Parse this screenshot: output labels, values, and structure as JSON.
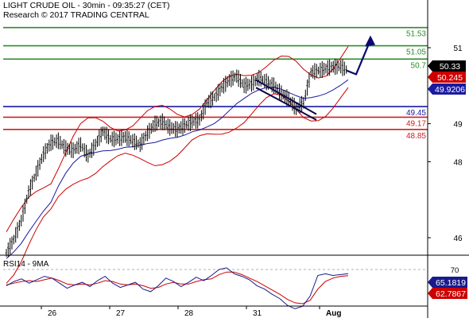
{
  "header": {
    "title": "LIGHT CRUDE OIL - 30min - 09:35:27 (CET)",
    "subtitle": "Research © 2017 TRADING CENTRAL"
  },
  "colors": {
    "background": "#ffffff",
    "resistance": "#2e8b2e",
    "pivot": "#1a1aa0",
    "support": "#cc2020",
    "price_bars": "#000000",
    "bollinger": "#cc0000",
    "moving_average": "#1a1aa0",
    "forecast_arrow": "#0a0a6e",
    "rsi_line": "#1a1a8c",
    "rsi_signal": "#cc0000"
  },
  "chart_data": [
    {
      "type": "candlestick",
      "title": "LIGHT CRUDE OIL - 30min - 09:35:27 (CET)",
      "y_axis": {
        "range": [
          45.45,
          52.3
        ],
        "ticks": [
          "51",
          "49",
          "48",
          "46"
        ],
        "tick_values": [
          51.0,
          49.0,
          48.0,
          46.0
        ]
      },
      "x_axis": {
        "ticks": [
          "26",
          "27",
          "28",
          "31",
          "Aug"
        ]
      },
      "horizontal_levels": [
        {
          "value": 51.53,
          "label": "51.53",
          "role": "resistance"
        },
        {
          "value": 51.05,
          "label": "51.05",
          "role": "resistance"
        },
        {
          "value": 50.7,
          "label": "50.7",
          "role": "resistance"
        },
        {
          "value": 49.45,
          "label": "49.45",
          "role": "pivot"
        },
        {
          "value": 49.17,
          "label": "49.17",
          "role": "support"
        },
        {
          "value": 48.85,
          "label": "48.85",
          "role": "support"
        }
      ],
      "price_tags": [
        {
          "value": 50.33,
          "label": "50.33",
          "style": "last"
        },
        {
          "value": 50.245,
          "label": "50.245",
          "style": "bollinger"
        },
        {
          "value": 49.9206,
          "label": "49.9206",
          "style": "ma"
        }
      ],
      "close_path": [
        45.6,
        45.95,
        46.45,
        47.2,
        47.7,
        48.2,
        48.5,
        48.55,
        48.35,
        48.3,
        48.45,
        48.15,
        48.45,
        48.8,
        48.6,
        48.6,
        48.65,
        48.55,
        48.45,
        48.75,
        49.0,
        49.05,
        48.9,
        48.85,
        48.95,
        49.05,
        49.1,
        49.55,
        49.7,
        49.95,
        50.15,
        50.25,
        50.0,
        50.05,
        50.2,
        50.1,
        50.0,
        49.8,
        49.65,
        49.4,
        49.55,
        50.35,
        50.4,
        50.45,
        50.5,
        50.5,
        50.4
      ],
      "trend_channel": {
        "from": [
          50.15,
          49.95
        ],
        "to": [
          49.25,
          49.1
        ]
      },
      "forecast_arrow": [
        50.4,
        50.3,
        51.2
      ]
    },
    {
      "type": "line",
      "title": "RSI14 - 9MA",
      "y_axis": {
        "ticks": [
          "70"
        ],
        "tick_values": [
          70
        ]
      },
      "rsi_path": [
        51,
        56,
        59,
        54,
        58,
        62,
        60,
        54,
        48,
        52,
        55,
        50,
        57,
        62,
        54,
        49,
        52,
        55,
        47,
        44,
        51,
        60,
        56,
        50,
        55,
        61,
        57,
        63,
        70,
        72,
        65,
        62,
        58,
        51,
        47,
        41,
        36,
        28,
        24,
        27,
        39,
        63,
        65,
        63,
        64,
        65.18
      ],
      "signal_path": [
        52,
        54,
        56,
        57,
        56,
        58,
        60,
        57,
        53,
        52,
        53,
        52,
        54,
        57,
        56,
        53,
        52,
        53,
        51,
        48,
        49,
        53,
        55,
        53,
        53,
        56,
        58,
        59,
        64,
        67,
        67,
        64,
        60,
        56,
        51,
        46,
        41,
        35,
        31,
        30,
        34,
        47,
        56,
        60,
        62,
        62.79
      ],
      "value_tags": [
        {
          "value": 65.1819,
          "label": "65.1819",
          "style": "rsi"
        },
        {
          "value": 62.7867,
          "label": "62.7867",
          "style": "signal"
        }
      ]
    }
  ]
}
